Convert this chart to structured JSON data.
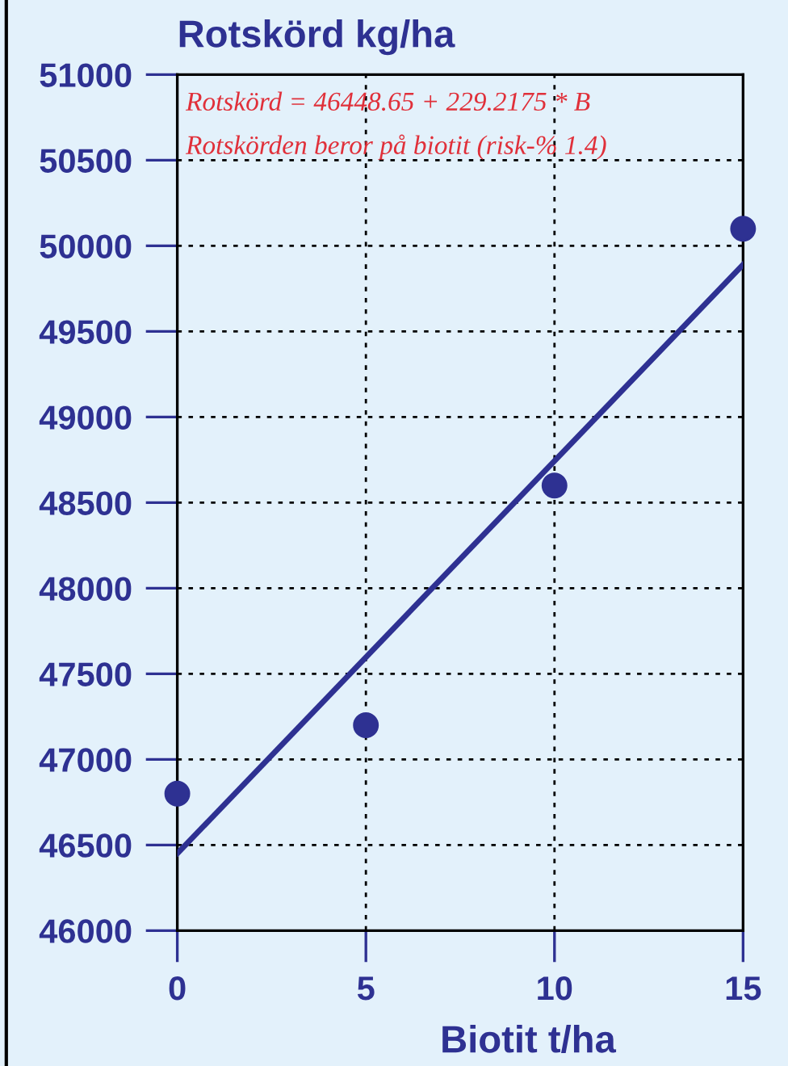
{
  "chart_data": {
    "type": "scatter",
    "title": "Rotskörd kg/ha",
    "xlabel": "Biotit t/ha",
    "annotations": [
      "Rotskörd = 46448.65 + 229.2175 * B",
      "Rotskörden beror på biotit (risk-% 1.4)"
    ],
    "series": [
      {
        "color": "#2e3192",
        "x": [
          0,
          5,
          10,
          15
        ],
        "values": [
          46800,
          47200,
          48600,
          50100
        ],
        "marker": "circle"
      },
      {
        "type": "line",
        "color": "#2e3192",
        "x": [
          0,
          15
        ],
        "values": [
          46450,
          49890
        ],
        "marker": "none",
        "line_style": "solid"
      }
    ],
    "xlim": [
      0,
      15
    ],
    "xticks": [
      0,
      5,
      10,
      15
    ],
    "ylim": [
      46000,
      51000
    ],
    "yticks": [
      46000,
      46500,
      47000,
      47500,
      48000,
      48500,
      49000,
      49500,
      50000,
      50500,
      51000
    ],
    "grid": true,
    "legend": false
  }
}
